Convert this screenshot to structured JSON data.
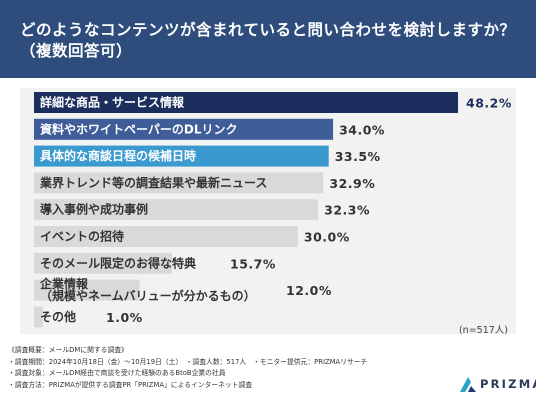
{
  "header": {
    "title_line1": "どのようなコンテンツが含まれていると問い合わせを検討しますか？",
    "title_line2": "（複数回答可）"
  },
  "chart_data": {
    "type": "bar",
    "orientation": "horizontal",
    "title": "どのようなコンテンツが含まれていると問い合わせを検討しますか？（複数回答可）",
    "unit": "%",
    "categories": [
      "詳細な商品・サービス情報",
      "資料やホワイトペーパーのDLリンク",
      "具体的な商談日程の候補日時",
      "業界トレンド等の調査結果や最新ニュース",
      "導入事例や成功事例",
      "イベントの招待",
      "そのメール限定のお得な特典",
      "企業情報\n（規模やネームバリューが分かるもの）",
      "その他"
    ],
    "values": [
      48.2,
      34.0,
      33.5,
      32.9,
      32.3,
      30.0,
      15.7,
      12.0,
      1.0
    ],
    "value_labels": [
      "48.2%",
      "34.0%",
      "33.5%",
      "32.9%",
      "32.3%",
      "30.0%",
      "15.7%",
      "12.0%",
      "1.0%"
    ],
    "bar_colors": [
      "#1c2e5e",
      "#3f5d99",
      "#3a9ad0",
      "#d9d9d9",
      "#d9d9d9",
      "#d9d9d9",
      "#d9d9d9",
      "#d9d9d9",
      "#d9d9d9"
    ],
    "label_colors": [
      "#ffffff",
      "#ffffff",
      "#ffffff",
      "#333333",
      "#333333",
      "#333333",
      "#333333",
      "#333333",
      "#333333"
    ],
    "xlim": [
      0,
      48.2
    ],
    "grid": false,
    "legend": "none"
  },
  "note": "(n=517人)",
  "footer": {
    "lines": [
      "《調査概要：メールDMに関する調査》",
      "・調査期間：2024年10月18日（金）〜10月19日（土）　・調査人数：517人　・モニター提供元：PRIZMAリサーチ",
      "・調査対象：メールDM経由で商談を受けた経験のあるBtoB企業の社員",
      "・調査方法：PRIZMAが提供する調査PR「PRIZMA」によるインターネット調査"
    ]
  },
  "logo": {
    "text": "PRIZMA",
    "colors": [
      "#2aa3c8",
      "#1f3a6e"
    ]
  },
  "colors": {
    "header_bg": "#2f4d7c",
    "plot_bg": "#f2f2f2",
    "value_text": "#333333",
    "top_value_text": "#1c2e5e"
  }
}
